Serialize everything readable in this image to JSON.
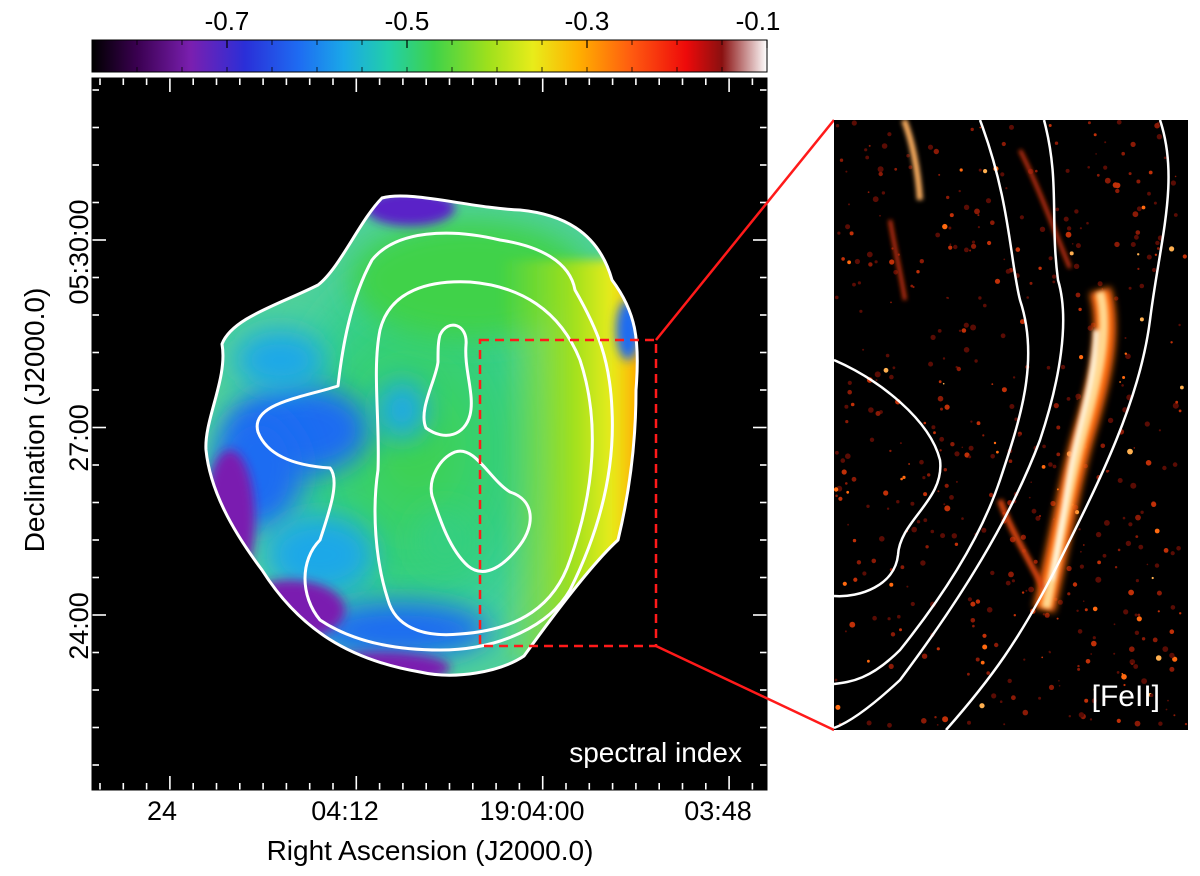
{
  "chart_data": [
    {
      "type": "heatmap",
      "title": "",
      "annotation": "spectral index",
      "xlabel": "Right Ascension (J2000.0)",
      "ylabel": "Declination (J2000.0)",
      "x_tick_labels": [
        "24",
        "04:12",
        "19:04:00",
        "03:48"
      ],
      "y_tick_labels": [
        "05:30:00",
        "27:00",
        "24:00"
      ],
      "colorbar": {
        "orientation": "horizontal",
        "placement": "top",
        "range": [
          -0.85,
          -0.1
        ],
        "tick_values": [
          -0.7,
          -0.5,
          -0.3,
          -0.1
        ],
        "tick_labels": [
          "-0.7",
          "-0.5",
          "-0.3",
          "-0.1"
        ],
        "colormap": [
          {
            "value": -0.85,
            "color": "#000000"
          },
          {
            "value": -0.8,
            "color": "#3a0050"
          },
          {
            "value": -0.74,
            "color": "#7a1fb0"
          },
          {
            "value": -0.68,
            "color": "#2a2fd8"
          },
          {
            "value": -0.62,
            "color": "#1e6cf2"
          },
          {
            "value": -0.57,
            "color": "#1aa8e8"
          },
          {
            "value": -0.52,
            "color": "#22cfa8"
          },
          {
            "value": -0.47,
            "color": "#3fd24a"
          },
          {
            "value": -0.41,
            "color": "#9ee01c"
          },
          {
            "value": -0.36,
            "color": "#e8ec1a"
          },
          {
            "value": -0.31,
            "color": "#ffb000"
          },
          {
            "value": -0.25,
            "color": "#ff5a10"
          },
          {
            "value": -0.19,
            "color": "#ee0a0a"
          },
          {
            "value": -0.15,
            "color": "#8a1010"
          },
          {
            "value": -0.1,
            "color": "#ffffff"
          }
        ]
      },
      "contours": "white total-intensity contours",
      "zoom_box": "red dashed rectangle on east edge of remnant"
    },
    {
      "type": "heatmap",
      "title": "",
      "annotation": "[FeII]",
      "description": "zoomed narrow-band image of the boxed region with white contours",
      "colors": {
        "background": "#000000",
        "emission_low": "#7a1205",
        "emission_mid": "#ff6a10",
        "emission_high": "#fff2c0"
      }
    }
  ],
  "colors": {
    "remnant_base": "#4ed09a",
    "contour": "#ffffff",
    "box": "#ff1a1a",
    "zoom_lines": "#ff1a1a",
    "map_background": "#000000"
  }
}
